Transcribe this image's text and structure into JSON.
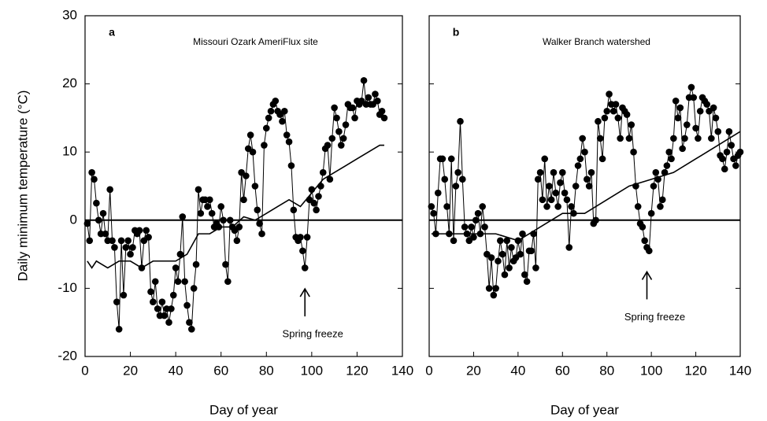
{
  "chart_data": [
    {
      "type": "line",
      "panel_label": "a",
      "title": "Missouri Ozark AmeriFlux site",
      "xlabel": "Day of year",
      "ylabel": "Daily minimum temperature (°C)",
      "xlim": [
        0,
        140
      ],
      "ylim": [
        -20,
        30
      ],
      "xticks": [
        0,
        20,
        40,
        60,
        80,
        100,
        120,
        140
      ],
      "yticks": [
        -20,
        -10,
        0,
        10,
        20,
        30
      ],
      "show_ytick_labels": true,
      "hlines": [
        0
      ],
      "annotations": [
        {
          "text": "Spring freeze",
          "x": 97,
          "y": -9.5
        }
      ],
      "series": [
        {
          "color": "#000000",
          "marker": "circle",
          "x": [
            1,
            2,
            3,
            4,
            5,
            6,
            7,
            8,
            9,
            10,
            11,
            12,
            13,
            14,
            15,
            16,
            17,
            18,
            19,
            20,
            21,
            22,
            23,
            24,
            25,
            26,
            27,
            28,
            29,
            30,
            31,
            32,
            33,
            34,
            35,
            36,
            37,
            38,
            39,
            40,
            41,
            42,
            43,
            44,
            45,
            46,
            47,
            48,
            49,
            50,
            51,
            52,
            53,
            54,
            55,
            56,
            57,
            58,
            59,
            60,
            61,
            62,
            63,
            64,
            65,
            66,
            67,
            68,
            69,
            70,
            71,
            72,
            73,
            74,
            75,
            76,
            77,
            78,
            79,
            80,
            81,
            82,
            83,
            84,
            85,
            86,
            87,
            88,
            89,
            90,
            91,
            92,
            93,
            94,
            95,
            96,
            97,
            98,
            99,
            100,
            101,
            102,
            103,
            104,
            105,
            106,
            107,
            108,
            109,
            110,
            111,
            112,
            113,
            114,
            115,
            116,
            117,
            118,
            119,
            120,
            121,
            122,
            123,
            124,
            125,
            126,
            127,
            128,
            129,
            130,
            131,
            132
          ],
          "values": [
            -0.5,
            -3,
            7,
            6,
            2.5,
            0,
            -2,
            1,
            -2,
            -3,
            4.5,
            -3,
            -4,
            -12,
            -16,
            -3,
            -11,
            -4,
            -3,
            -5,
            -4,
            -1.5,
            -2,
            -1.5,
            -7,
            -3,
            -1.5,
            -2.5,
            -10.5,
            -12,
            -9,
            -13,
            -14,
            -12,
            -14,
            -13,
            -15,
            -13,
            -11,
            -7,
            -9,
            -5,
            0.5,
            -9,
            -12.5,
            -15,
            -16,
            -10,
            -6.5,
            4.5,
            1,
            3,
            3,
            2,
            3,
            1,
            -1,
            -0.5,
            -1,
            2,
            0,
            -6.5,
            -9,
            0,
            -1,
            -1.5,
            -3,
            -1,
            7,
            3,
            6.5,
            10.5,
            12.5,
            10,
            5,
            1.5,
            -0.5,
            -2,
            11,
            13.5,
            15,
            16,
            17,
            17.5,
            16,
            15.5,
            14.5,
            16,
            12.5,
            11.5,
            8,
            1.5,
            -2.5,
            -3,
            -2.5,
            -4.5,
            -7,
            -2.5,
            3,
            4.5,
            2.5,
            1.5,
            3.5,
            5,
            7,
            10.5,
            11,
            6,
            12,
            16.5,
            15,
            13,
            11,
            12,
            14,
            17,
            16.5,
            16.5,
            15,
            17.5,
            17,
            17.5,
            20.5,
            17,
            18,
            17,
            17,
            18.5,
            17.5,
            15.5,
            16,
            15
          ]
        },
        {
          "color": "#000000",
          "marker": "none",
          "x": [
            1,
            3,
            5,
            10,
            15,
            20,
            25,
            30,
            35,
            40,
            45,
            50,
            55,
            60,
            65,
            70,
            75,
            80,
            85,
            90,
            95,
            100,
            105,
            110,
            115,
            120,
            125,
            130,
            132
          ],
          "values": [
            -6,
            -7,
            -6,
            -7,
            -6,
            -6,
            -7,
            -6,
            -6,
            -6,
            -5,
            -2,
            -2,
            -1,
            -1,
            0.5,
            0,
            1,
            2,
            3,
            2,
            4,
            6,
            7,
            8,
            9,
            10,
            11,
            11
          ]
        }
      ]
    },
    {
      "type": "line",
      "panel_label": "b",
      "title": "Walker Branch watershed",
      "xlabel": "Day of year",
      "xlim": [
        0,
        140
      ],
      "ylim": [
        -20,
        30
      ],
      "xticks": [
        0,
        20,
        40,
        60,
        80,
        100,
        120,
        140
      ],
      "yticks": [
        -20,
        -10,
        0,
        10,
        20,
        30
      ],
      "show_ytick_labels": false,
      "hlines": [
        0
      ],
      "annotations": [
        {
          "text": "Spring freeze",
          "x": 98,
          "y": -7
        }
      ],
      "series": [
        {
          "color": "#000000",
          "marker": "circle",
          "x": [
            1,
            2,
            3,
            4,
            5,
            6,
            7,
            8,
            9,
            10,
            11,
            12,
            13,
            14,
            15,
            16,
            17,
            18,
            19,
            20,
            21,
            22,
            23,
            24,
            25,
            26,
            27,
            28,
            29,
            30,
            31,
            32,
            33,
            34,
            35,
            36,
            37,
            38,
            39,
            40,
            41,
            42,
            43,
            44,
            45,
            46,
            47,
            48,
            49,
            50,
            51,
            52,
            53,
            54,
            55,
            56,
            57,
            58,
            59,
            60,
            61,
            62,
            63,
            64,
            65,
            66,
            67,
            68,
            69,
            70,
            71,
            72,
            73,
            74,
            75,
            76,
            77,
            78,
            79,
            80,
            81,
            82,
            83,
            84,
            85,
            86,
            87,
            88,
            89,
            90,
            91,
            92,
            93,
            94,
            95,
            96,
            97,
            98,
            99,
            100,
            101,
            102,
            103,
            104,
            105,
            106,
            107,
            108,
            109,
            110,
            111,
            112,
            113,
            114,
            115,
            116,
            117,
            118,
            119,
            120,
            121,
            122,
            123,
            124,
            125,
            126,
            127,
            128,
            129,
            130,
            131,
            132,
            133,
            134,
            135,
            136,
            137,
            138,
            139,
            140
          ],
          "values": [
            2,
            1,
            -2,
            4,
            9,
            9,
            6,
            2,
            -2,
            9,
            -3,
            5,
            7,
            14.5,
            6,
            -1,
            -2,
            -3,
            -1,
            -2.5,
            0,
            1,
            -2,
            2,
            -1,
            -5,
            -10,
            -5.5,
            -11,
            -10,
            -6,
            -3,
            -5,
            -8,
            -3,
            -7,
            -4,
            -6,
            -5.5,
            -3,
            -5,
            -2,
            -8,
            -9,
            -4.5,
            -4.5,
            -2,
            -7,
            6,
            7,
            3,
            9,
            2,
            5,
            3,
            7,
            4,
            2,
            5.5,
            7,
            4,
            3,
            -4,
            2,
            1,
            5,
            8,
            9,
            12,
            10,
            6,
            5,
            7,
            -0.5,
            0,
            14.5,
            12,
            9,
            15,
            16,
            18.5,
            17,
            16,
            17,
            15,
            12,
            16.5,
            16,
            15.5,
            12,
            14,
            10,
            5,
            2,
            -0.5,
            -1,
            -3,
            -4,
            -4.5,
            1,
            5,
            7,
            6,
            2,
            3,
            7,
            8,
            10,
            9,
            12,
            17.5,
            15,
            16.5,
            10.5,
            12,
            14,
            18,
            19.5,
            18,
            13.5,
            12,
            16,
            18,
            17.5,
            17,
            16,
            12,
            16.5,
            15,
            13,
            9.5,
            9,
            7.5,
            10,
            13,
            11,
            9,
            8,
            9.5,
            10
          ]
        },
        {
          "color": "#000000",
          "marker": "none",
          "x": [
            1,
            10,
            20,
            30,
            40,
            50,
            60,
            70,
            80,
            90,
            100,
            110,
            120,
            130,
            140
          ],
          "values": [
            -2,
            -2,
            -2,
            -2,
            -3,
            -1,
            1,
            1,
            3,
            5,
            6,
            7,
            9,
            11,
            13
          ]
        }
      ]
    }
  ]
}
